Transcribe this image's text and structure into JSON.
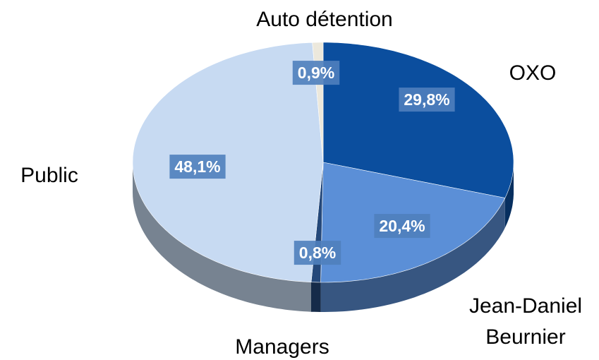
{
  "chart_data": {
    "type": "pie",
    "categories": [
      "OXO",
      "Jean-Daniel Beurnier",
      "Managers",
      "Public",
      "Auto détention"
    ],
    "values": [
      29.8,
      20.4,
      0.8,
      48.1,
      0.9
    ],
    "value_labels": [
      "29,8%",
      "20,4%",
      "0,8%",
      "48,1%",
      "0,9%"
    ],
    "colors": [
      "#0b4e9e",
      "#5b8fd7",
      "#24487a",
      "#c7daf2",
      "#ece8dc"
    ]
  }
}
